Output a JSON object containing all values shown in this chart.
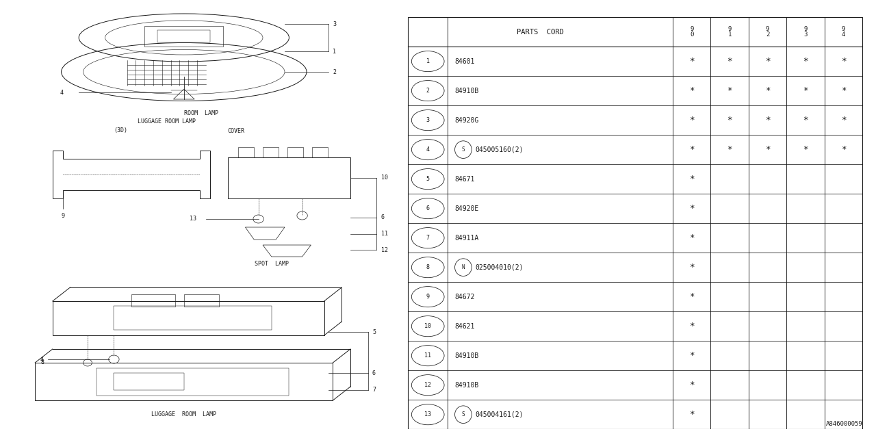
{
  "bg_color": "#ffffff",
  "table": {
    "header_label": "PARTS  CORD",
    "col_headers": [
      "9\n0",
      "9\n1",
      "9\n2",
      "9\n3",
      "9\n4"
    ],
    "rows": [
      {
        "num": "1",
        "prefix": "",
        "code": "84601",
        "marks": [
          true,
          true,
          true,
          true,
          true
        ]
      },
      {
        "num": "2",
        "prefix": "",
        "code": "84910B",
        "marks": [
          true,
          true,
          true,
          true,
          true
        ]
      },
      {
        "num": "3",
        "prefix": "",
        "code": "84920G",
        "marks": [
          true,
          true,
          true,
          true,
          true
        ]
      },
      {
        "num": "4",
        "prefix": "S",
        "code": "045005160(2)",
        "marks": [
          true,
          true,
          true,
          true,
          true
        ]
      },
      {
        "num": "5",
        "prefix": "",
        "code": "84671",
        "marks": [
          true,
          false,
          false,
          false,
          false
        ]
      },
      {
        "num": "6",
        "prefix": "",
        "code": "84920E",
        "marks": [
          true,
          false,
          false,
          false,
          false
        ]
      },
      {
        "num": "7",
        "prefix": "",
        "code": "84911A",
        "marks": [
          true,
          false,
          false,
          false,
          false
        ]
      },
      {
        "num": "8",
        "prefix": "N",
        "code": "025004010(2)",
        "marks": [
          true,
          false,
          false,
          false,
          false
        ]
      },
      {
        "num": "9",
        "prefix": "",
        "code": "84672",
        "marks": [
          true,
          false,
          false,
          false,
          false
        ]
      },
      {
        "num": "10",
        "prefix": "",
        "code": "84621",
        "marks": [
          true,
          false,
          false,
          false,
          false
        ]
      },
      {
        "num": "11",
        "prefix": "",
        "code": "84910B",
        "marks": [
          true,
          false,
          false,
          false,
          false
        ]
      },
      {
        "num": "12",
        "prefix": "",
        "code": "84910B",
        "marks": [
          true,
          false,
          false,
          false,
          false
        ]
      },
      {
        "num": "13",
        "prefix": "S",
        "code": "045004161(2)",
        "marks": [
          true,
          false,
          false,
          false,
          false
        ]
      }
    ]
  },
  "footer_code": "A846000059"
}
